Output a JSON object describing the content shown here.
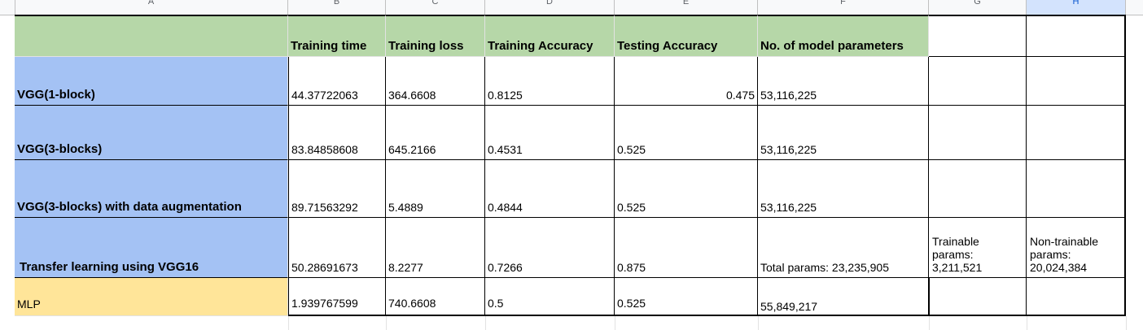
{
  "columns": [
    "A",
    "B",
    "C",
    "D",
    "E",
    "F",
    "G",
    "H"
  ],
  "selected_column": "H",
  "headers": [
    "",
    "Training time",
    "Training loss",
    "Training Accuracy",
    "Testing Accuracy",
    "No. of model parameters",
    "",
    ""
  ],
  "rows": [
    {
      "model": "VGG(1-block)",
      "time": "44.37722063",
      "loss": "364.6608",
      "train_acc": "0.8125",
      "test_acc": "0.475",
      "params": "53,116,225",
      "g": "",
      "h": ""
    },
    {
      "model": "VGG(3-blocks)",
      "time": "83.84858608",
      "loss": "645.2166",
      "train_acc": "0.4531",
      "test_acc": "0.525",
      "params": "53,116,225",
      "g": "",
      "h": ""
    },
    {
      "model": "VGG(3-blocks) with data augmentation",
      "time": "89.71563292",
      "loss": "5.4889",
      "train_acc": "0.4844",
      "test_acc": "0.525",
      "params": "53,116,225",
      "g": "",
      "h": ""
    },
    {
      "model": "Transfer learning using VGG16",
      "time": "50.28691673",
      "loss": "8.2277",
      "train_acc": "0.7266",
      "test_acc": "0.875",
      "params": "Total params: 23,235,905",
      "g": "Trainable params: 3,211,521",
      "h": "Non-trainable params: 20,024,384"
    },
    {
      "model": "MLP",
      "time": "1.939767599",
      "loss": "740.6608",
      "train_acc": "0.5",
      "test_acc": "0.525",
      "params": "55,849,217",
      "g": "",
      "h": ""
    }
  ],
  "colors": {
    "header_green": "#b6d7a8",
    "model_blue": "#a4c2f4",
    "mlp_yellow": "#ffe599",
    "selected_header": "#d3e3fd"
  }
}
